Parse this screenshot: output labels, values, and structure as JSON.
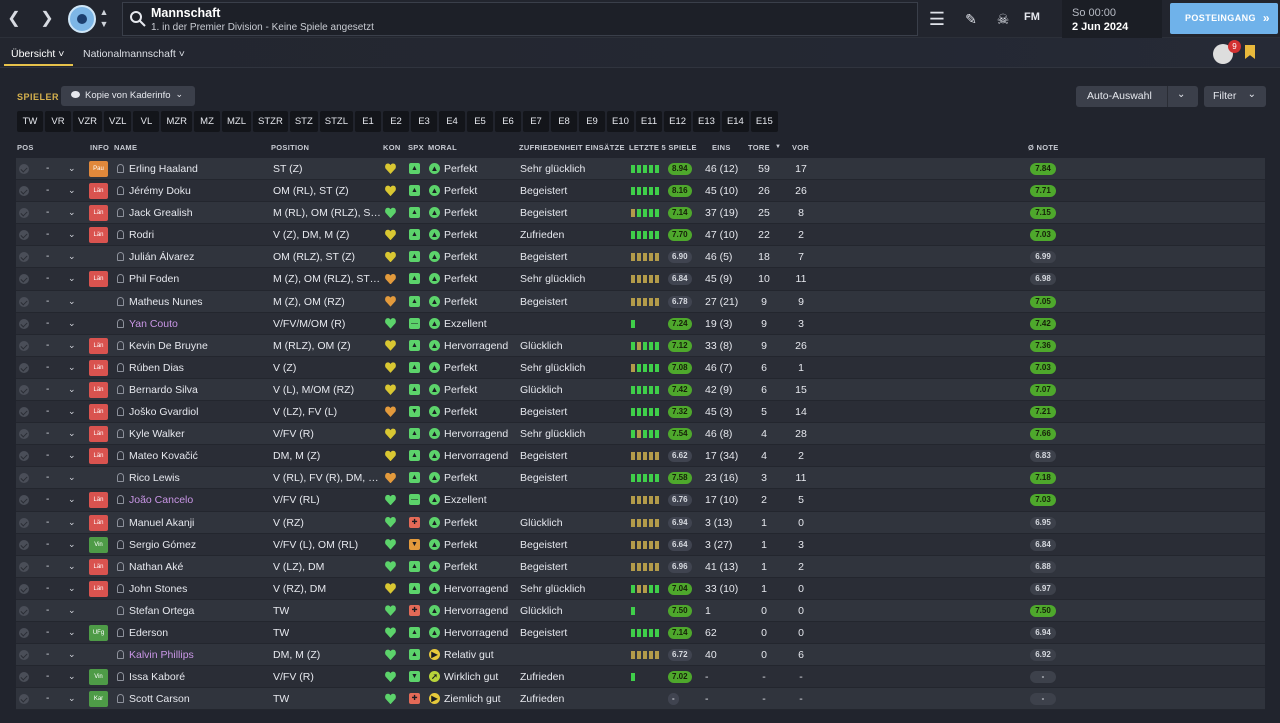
{
  "header": {
    "title": "Mannschaft",
    "subtitle": "1. in der Premier Division - Keine Spiele angesetzt",
    "fm_logo": "FM",
    "date_line1": "So 00:00",
    "date_line2": "2 Jun 2024",
    "inbox_label": "POSTEINGANG",
    "notification_count": "9",
    "icons": [
      "back-arrow-icon",
      "forward-arrow-icon",
      "club-crest-icon",
      "search-icon",
      "menu-icon",
      "edit-icon",
      "skull-icon"
    ]
  },
  "tabs": [
    {
      "label": "Übersicht ˅",
      "active": true
    },
    {
      "label": "Nationalmannschaft ˅",
      "active": false
    }
  ],
  "toolbar": {
    "section_label": "SPIELER",
    "view_label": "Kopie von Kaderinfo",
    "auto_label": "Auto-Auswahl",
    "filter_label": "Filter"
  },
  "position_buttons": [
    "TW",
    "VR",
    "VZR",
    "VZL",
    "VL",
    "MZR",
    "MZ",
    "MZL",
    "STZR",
    "STZ",
    "STZL",
    "E1",
    "E2",
    "E3",
    "E4",
    "E5",
    "E6",
    "E7",
    "E8",
    "E9",
    "E10",
    "E11",
    "E12",
    "E13",
    "E14",
    "E15"
  ],
  "columns": {
    "pos": "POS",
    "info": "INFO",
    "name": "NAME",
    "position": "POSITION",
    "kon": "KON",
    "spx": "SPX",
    "moral": "MORAL",
    "zufriedenheit": "ZUFRIEDENHEIT EINSÄTZE",
    "letzte": "LETZTE 5 SPIELE",
    "eins": "EINS",
    "tore": "TORE",
    "vor": "VOR",
    "note": "Ø NOTE"
  },
  "colors": {
    "accent": "#e7c24b",
    "inbox": "#6fb2ea",
    "rating_good": "#4ea82c",
    "loan": "#d9534f",
    "pau": "#e0883b",
    "vin": "#4e9b47",
    "ufg": "#4e9b47",
    "kar": "#4e9b47",
    "kon_yellow": "#d9c732",
    "kon_orange": "#e39a3c",
    "kon_green": "#5cd36b",
    "name_purple": "#c996e6"
  },
  "players": [
    {
      "pos": "-",
      "info": "Pau",
      "name": "Erling Haaland",
      "position": "ST (Z)",
      "kon": "yellow",
      "spx": "up",
      "moral": "Perfekt",
      "moral_icon": "up",
      "zufriedenheit": "Sehr glücklich",
      "form": [
        "g",
        "g",
        "g",
        "g",
        "g"
      ],
      "letzte": "8.94",
      "letzte_style": "g",
      "eins": "46 (12)",
      "tore": "59",
      "vor": "17",
      "note": "7.84",
      "note_style": "g",
      "purple": false
    },
    {
      "pos": "-",
      "info": "Län",
      "name": "Jérémy Doku",
      "position": "OM (RL), ST (Z)",
      "kon": "yellow",
      "spx": "up",
      "moral": "Perfekt",
      "moral_icon": "up",
      "zufriedenheit": "Begeistert",
      "form": [
        "g",
        "g",
        "g",
        "g",
        "g"
      ],
      "letzte": "8.16",
      "letzte_style": "g",
      "eins": "45 (10)",
      "tore": "26",
      "vor": "26",
      "note": "7.71",
      "note_style": "g",
      "purple": false
    },
    {
      "pos": "-",
      "info": "Län",
      "name": "Jack Grealish",
      "position": "M (RL), OM (RLZ), ST (Z)",
      "kon": "green",
      "spx": "up",
      "moral": "Perfekt",
      "moral_icon": "up",
      "zufriedenheit": "Begeistert",
      "form": [
        "y",
        "g",
        "g",
        "g",
        "g"
      ],
      "letzte": "7.14",
      "letzte_style": "g",
      "eins": "37 (19)",
      "tore": "25",
      "vor": "8",
      "note": "7.15",
      "note_style": "g",
      "purple": false
    },
    {
      "pos": "-",
      "info": "Län",
      "name": "Rodri",
      "position": "V (Z), DM, M (Z)",
      "kon": "yellow",
      "spx": "up",
      "moral": "Perfekt",
      "moral_icon": "up",
      "zufriedenheit": "Zufrieden",
      "form": [
        "g",
        "g",
        "g",
        "g",
        "g"
      ],
      "letzte": "7.70",
      "letzte_style": "g",
      "eins": "47 (10)",
      "tore": "22",
      "vor": "2",
      "note": "7.03",
      "note_style": "g",
      "purple": false
    },
    {
      "pos": "-",
      "info": "",
      "name": "Julián Álvarez",
      "position": "OM (RLZ), ST (Z)",
      "kon": "yellow",
      "spx": "up",
      "moral": "Perfekt",
      "moral_icon": "up",
      "zufriedenheit": "Begeistert",
      "form": [
        "y",
        "y",
        "y",
        "y",
        "y"
      ],
      "letzte": "6.90",
      "letzte_style": "d",
      "eins": "46 (5)",
      "tore": "18",
      "vor": "7",
      "note": "6.99",
      "note_style": "d",
      "purple": false
    },
    {
      "pos": "-",
      "info": "Län",
      "name": "Phil Foden",
      "position": "M (Z), OM (RLZ), ST (Z)",
      "kon": "orange",
      "spx": "up",
      "moral": "Perfekt",
      "moral_icon": "up",
      "zufriedenheit": "Sehr glücklich",
      "form": [
        "y",
        "y",
        "y",
        "y",
        "y"
      ],
      "letzte": "6.84",
      "letzte_style": "d",
      "eins": "45 (9)",
      "tore": "10",
      "vor": "11",
      "note": "6.98",
      "note_style": "d",
      "purple": false
    },
    {
      "pos": "-",
      "info": "",
      "name": "Matheus Nunes",
      "position": "M (Z), OM (RZ)",
      "kon": "orange",
      "spx": "up",
      "moral": "Perfekt",
      "moral_icon": "up",
      "zufriedenheit": "Begeistert",
      "form": [
        "y",
        "y",
        "y",
        "y",
        "y"
      ],
      "letzte": "6.78",
      "letzte_style": "d",
      "eins": "27 (21)",
      "tore": "9",
      "vor": "9",
      "note": "7.05",
      "note_style": "g",
      "purple": false
    },
    {
      "pos": "-",
      "info": "",
      "name": "Yan Couto",
      "position": "V/FV/M/OM (R)",
      "kon": "green",
      "spx": "neutral",
      "moral": "Exzellent",
      "moral_icon": "up",
      "zufriedenheit": "",
      "form": [
        "g"
      ],
      "letzte": "7.24",
      "letzte_style": "g",
      "eins": "19 (3)",
      "tore": "9",
      "vor": "3",
      "note": "7.42",
      "note_style": "g",
      "purple": true
    },
    {
      "pos": "-",
      "info": "Län",
      "name": "Kevin De Bruyne",
      "position": "M (RLZ), OM (Z)",
      "kon": "yellow",
      "spx": "up",
      "moral": "Hervorragend",
      "moral_icon": "up",
      "zufriedenheit": "Glücklich",
      "form": [
        "g",
        "y",
        "g",
        "g",
        "g"
      ],
      "letzte": "7.12",
      "letzte_style": "g",
      "eins": "33 (8)",
      "tore": "9",
      "vor": "26",
      "note": "7.36",
      "note_style": "g",
      "purple": false
    },
    {
      "pos": "-",
      "info": "Län",
      "name": "Rúben Dias",
      "position": "V (Z)",
      "kon": "yellow",
      "spx": "up",
      "moral": "Perfekt",
      "moral_icon": "up",
      "zufriedenheit": "Sehr glücklich",
      "form": [
        "y",
        "g",
        "g",
        "g",
        "g"
      ],
      "letzte": "7.08",
      "letzte_style": "g",
      "eins": "46 (7)",
      "tore": "6",
      "vor": "1",
      "note": "7.03",
      "note_style": "g",
      "purple": false
    },
    {
      "pos": "-",
      "info": "Län",
      "name": "Bernardo Silva",
      "position": "V (L), M/OM (RZ)",
      "kon": "yellow",
      "spx": "up",
      "moral": "Perfekt",
      "moral_icon": "up",
      "zufriedenheit": "Glücklich",
      "form": [
        "g",
        "g",
        "g",
        "g",
        "g"
      ],
      "letzte": "7.42",
      "letzte_style": "g",
      "eins": "42 (9)",
      "tore": "6",
      "vor": "15",
      "note": "7.07",
      "note_style": "g",
      "purple": false
    },
    {
      "pos": "-",
      "info": "Län",
      "name": "Joško Gvardiol",
      "position": "V (LZ), FV (L)",
      "kon": "orange",
      "spx": "down",
      "moral": "Perfekt",
      "moral_icon": "up",
      "zufriedenheit": "Begeistert",
      "form": [
        "g",
        "g",
        "g",
        "g",
        "g"
      ],
      "letzte": "7.32",
      "letzte_style": "g",
      "eins": "45 (3)",
      "tore": "5",
      "vor": "14",
      "note": "7.21",
      "note_style": "g",
      "purple": false
    },
    {
      "pos": "-",
      "info": "Län",
      "name": "Kyle Walker",
      "position": "V/FV (R)",
      "kon": "yellow",
      "spx": "up",
      "moral": "Hervorragend",
      "moral_icon": "up",
      "zufriedenheit": "Sehr glücklich",
      "form": [
        "g",
        "y",
        "g",
        "g",
        "g"
      ],
      "letzte": "7.54",
      "letzte_style": "g",
      "eins": "46 (8)",
      "tore": "4",
      "vor": "28",
      "note": "7.66",
      "note_style": "g",
      "purple": false
    },
    {
      "pos": "-",
      "info": "Län",
      "name": "Mateo Kovačić",
      "position": "DM, M (Z)",
      "kon": "yellow",
      "spx": "up",
      "moral": "Hervorragend",
      "moral_icon": "up",
      "zufriedenheit": "Begeistert",
      "form": [
        "y",
        "y",
        "y",
        "y",
        "y"
      ],
      "letzte": "6.62",
      "letzte_style": "d",
      "eins": "17 (34)",
      "tore": "4",
      "vor": "2",
      "note": "6.83",
      "note_style": "d",
      "purple": false
    },
    {
      "pos": "-",
      "info": "",
      "name": "Rico Lewis",
      "position": "V (RL), FV (R), DM, M (RZ)",
      "kon": "orange",
      "spx": "up",
      "moral": "Perfekt",
      "moral_icon": "up",
      "zufriedenheit": "Begeistert",
      "form": [
        "g",
        "g",
        "g",
        "g",
        "g"
      ],
      "letzte": "7.58",
      "letzte_style": "g",
      "eins": "23 (16)",
      "tore": "3",
      "vor": "11",
      "note": "7.18",
      "note_style": "g",
      "purple": false
    },
    {
      "pos": "-",
      "info": "Län",
      "name": "João Cancelo",
      "position": "V/FV (RL)",
      "kon": "green",
      "spx": "neutral",
      "moral": "Exzellent",
      "moral_icon": "up",
      "zufriedenheit": "",
      "form": [
        "y",
        "y",
        "y",
        "y",
        "y"
      ],
      "letzte": "6.76",
      "letzte_style": "d",
      "eins": "17 (10)",
      "tore": "2",
      "vor": "5",
      "note": "7.03",
      "note_style": "g",
      "purple": true
    },
    {
      "pos": "-",
      "info": "Län",
      "name": "Manuel Akanji",
      "position": "V (RZ)",
      "kon": "green",
      "spx": "red",
      "moral": "Perfekt",
      "moral_icon": "up",
      "zufriedenheit": "Glücklich",
      "form": [
        "y",
        "y",
        "y",
        "y",
        "y"
      ],
      "letzte": "6.94",
      "letzte_style": "d",
      "eins": "3 (13)",
      "tore": "1",
      "vor": "0",
      "note": "6.95",
      "note_style": "d",
      "purple": false
    },
    {
      "pos": "-",
      "info": "Vin",
      "name": "Sergio Gómez",
      "position": "V/FV (L), OM (RL)",
      "kon": "green",
      "spx": "orange",
      "moral": "Perfekt",
      "moral_icon": "up",
      "zufriedenheit": "Begeistert",
      "form": [
        "y",
        "y",
        "y",
        "y",
        "y"
      ],
      "letzte": "6.64",
      "letzte_style": "d",
      "eins": "3 (27)",
      "tore": "1",
      "vor": "3",
      "note": "6.84",
      "note_style": "d",
      "purple": false
    },
    {
      "pos": "-",
      "info": "Län",
      "name": "Nathan Aké",
      "position": "V (LZ), DM",
      "kon": "green",
      "spx": "up",
      "moral": "Perfekt",
      "moral_icon": "up",
      "zufriedenheit": "Begeistert",
      "form": [
        "y",
        "y",
        "y",
        "y",
        "y"
      ],
      "letzte": "6.96",
      "letzte_style": "d",
      "eins": "41 (13)",
      "tore": "1",
      "vor": "2",
      "note": "6.88",
      "note_style": "d",
      "purple": false
    },
    {
      "pos": "-",
      "info": "Län",
      "name": "John Stones",
      "position": "V (RZ), DM",
      "kon": "yellow",
      "spx": "up",
      "moral": "Hervorragend",
      "moral_icon": "up",
      "zufriedenheit": "Sehr glücklich",
      "form": [
        "g",
        "y",
        "y",
        "g",
        "g"
      ],
      "letzte": "7.04",
      "letzte_style": "g",
      "eins": "33 (10)",
      "tore": "1",
      "vor": "0",
      "note": "6.97",
      "note_style": "d",
      "purple": false
    },
    {
      "pos": "-",
      "info": "",
      "name": "Stefan Ortega",
      "position": "TW",
      "kon": "green",
      "spx": "red",
      "moral": "Hervorragend",
      "moral_icon": "up",
      "zufriedenheit": "Glücklich",
      "form": [
        "g"
      ],
      "letzte": "7.50",
      "letzte_style": "g",
      "eins": "1",
      "tore": "0",
      "vor": "0",
      "note": "7.50",
      "note_style": "g",
      "purple": false
    },
    {
      "pos": "-",
      "info": "UFg",
      "name": "Ederson",
      "position": "TW",
      "kon": "green",
      "spx": "up",
      "moral": "Hervorragend",
      "moral_icon": "up",
      "zufriedenheit": "Begeistert",
      "form": [
        "g",
        "g",
        "g",
        "g",
        "g"
      ],
      "letzte": "7.14",
      "letzte_style": "g",
      "eins": "62",
      "tore": "0",
      "vor": "0",
      "note": "6.94",
      "note_style": "d",
      "purple": false
    },
    {
      "pos": "-",
      "info": "",
      "name": "Kalvin Phillips",
      "position": "DM, M (Z)",
      "kon": "green",
      "spx": "up",
      "moral": "Relativ gut",
      "moral_icon": "right",
      "zufriedenheit": "",
      "form": [
        "y",
        "y",
        "y",
        "y",
        "y"
      ],
      "letzte": "6.72",
      "letzte_style": "d",
      "eins": "40",
      "tore": "0",
      "vor": "6",
      "note": "6.92",
      "note_style": "d",
      "purple": true
    },
    {
      "pos": "-",
      "info": "Vin",
      "name": "Issa Kaboré",
      "position": "V/FV (R)",
      "kon": "green",
      "spx": "down",
      "moral": "Wirklich gut",
      "moral_icon": "upright",
      "zufriedenheit": "Zufrieden",
      "form": [
        "g"
      ],
      "letzte": "7.02",
      "letzte_style": "g",
      "eins": "-",
      "tore": "-",
      "vor": "-",
      "note": "-",
      "note_style": "d",
      "purple": false
    },
    {
      "pos": "-",
      "info": "Kar",
      "name": "Scott Carson",
      "position": "TW",
      "kon": "green",
      "spx": "red",
      "moral": "Ziemlich gut",
      "moral_icon": "right",
      "zufriedenheit": "Zufrieden",
      "form": [],
      "letzte": "-",
      "letzte_style": "d",
      "eins": "-",
      "tore": "-",
      "vor": "-",
      "note": "-",
      "note_style": "d",
      "purple": false
    }
  ]
}
